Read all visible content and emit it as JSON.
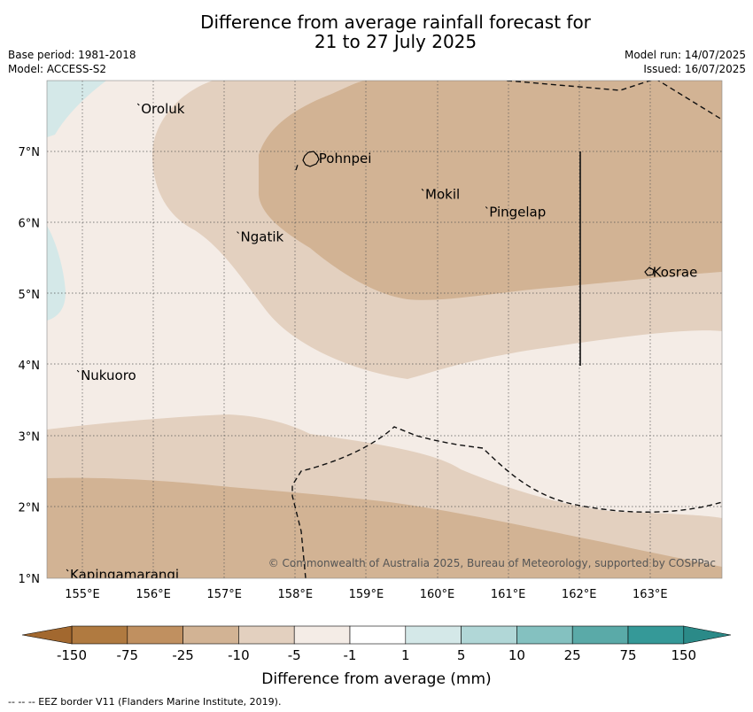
{
  "title": {
    "line1": "Difference from average rainfall forecast for",
    "line2": "21 to 27 July 2025"
  },
  "meta_left": {
    "base_period": "Base period: 1981-2018",
    "model": "Model: ACCESS-S2"
  },
  "meta_right": {
    "model_run": "Model run: 14/07/2025",
    "issued": "Issued: 16/07/2025"
  },
  "map": {
    "lon_labels": [
      "155°E",
      "156°E",
      "157°E",
      "158°E",
      "159°E",
      "160°E",
      "161°E",
      "162°E",
      "163°E"
    ],
    "lat_labels": [
      "1°N",
      "2°N",
      "3°N",
      "4°N",
      "5°N",
      "6°N",
      "7°N"
    ],
    "places": [
      {
        "name": "Oroluk",
        "lon": 155.8,
        "lat": 7.6
      },
      {
        "name": "Pohnpei",
        "lon": 158.3,
        "lat": 6.9
      },
      {
        "name": "Mokil",
        "lon": 159.8,
        "lat": 6.4
      },
      {
        "name": "Pingelap",
        "lon": 160.7,
        "lat": 6.15
      },
      {
        "name": "Ngatik",
        "lon": 157.2,
        "lat": 5.8
      },
      {
        "name": "Kosrae",
        "lon": 163.0,
        "lat": 5.3
      },
      {
        "name": "Nukuoro",
        "lon": 154.95,
        "lat": 3.85
      },
      {
        "name": "Kapingamarangi",
        "lon": 154.8,
        "lat": 1.05
      }
    ],
    "copyright": "© Commonwealth of Australia 2025, Bureau of Meteorology, supported by COSPPac",
    "colors": {
      "c_neg10_neg5": "#f4ece6",
      "c_neg25_neg10": "#e3d0bf",
      "c_neg75_neg25": "#d2b394",
      "c_1_5": "#d4e8e8",
      "grid": "#555555",
      "eez": "#111111"
    }
  },
  "colorbar": {
    "labels": [
      "-150",
      "-75",
      "-25",
      "-10",
      "-5",
      "-1",
      "1",
      "5",
      "10",
      "25",
      "75",
      "150"
    ],
    "colors": [
      "#b07a40",
      "#c09060",
      "#d2b394",
      "#e3d0bf",
      "#f4ece6",
      "#ffffff",
      "#d4e8e8",
      "#b1d7d7",
      "#84c1c0",
      "#5aaaa8",
      "#359998"
    ],
    "extend_low": "#a2682f",
    "extend_high": "#2b8a88",
    "axis_label": "Difference from average (mm)"
  },
  "footnote": "--  --  -- EEZ border V11 (Flanders Marine Institute, 2019)."
}
